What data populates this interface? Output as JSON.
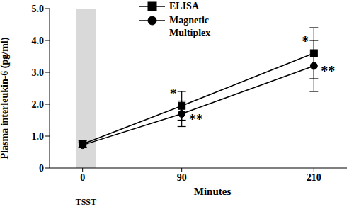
{
  "chart_data": {
    "type": "line",
    "x_label": "Minutes",
    "y_label": "Plasma interleukin-6 (pg/ml)",
    "x": [
      0,
      90,
      210
    ],
    "series": [
      {
        "name": "ELISA",
        "color": "#000000",
        "marker": "square",
        "values": [
          0.75,
          1.95,
          3.6
        ],
        "errors": [
          0.1,
          0.45,
          0.8
        ],
        "annotations": [
          null,
          "*",
          "*"
        ]
      },
      {
        "name": "Magnetic Multiplex",
        "color": "#000000",
        "marker": "circle",
        "values": [
          0.72,
          1.7,
          3.2
        ],
        "errors": [
          0.08,
          0.4,
          0.8
        ],
        "annotations": [
          null,
          "**",
          "**"
        ]
      }
    ],
    "xlim": [
      -30,
      240
    ],
    "xticks": [
      0,
      90,
      210
    ],
    "ylim": [
      0,
      5
    ],
    "yticks": [
      0,
      {
        "value": 1,
        "label": "1.0"
      },
      {
        "value": 2,
        "label": "2.0"
      },
      {
        "value": 3,
        "label": "3.0"
      },
      {
        "value": 4,
        "label": "4.0"
      },
      {
        "value": 5,
        "label": "5.0"
      }
    ],
    "shaded_region": {
      "x": [
        -6,
        12
      ],
      "label": "TSST"
    },
    "legend": "top",
    "grid": false
  }
}
